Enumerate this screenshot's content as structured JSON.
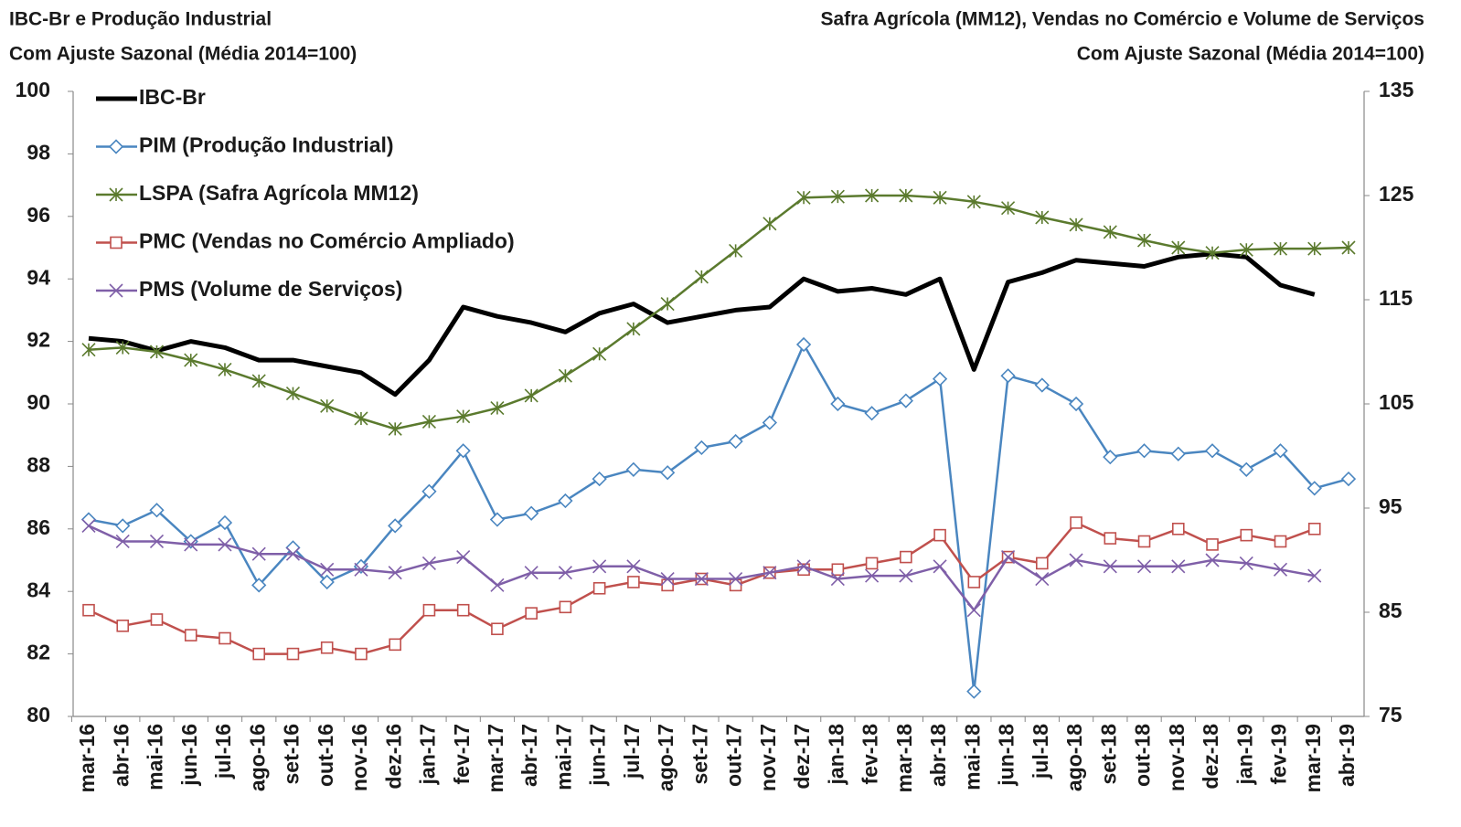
{
  "chart_data": {
    "type": "line",
    "title_left": [
      "IBC-Br e Produção Industrial",
      "Com Ajuste Sazonal (Média 2014=100)"
    ],
    "title_right": [
      "Safra Agrícola (MM12), Vendas no Comércio e Volume de Serviços",
      "Com Ajuste Sazonal (Média 2014=100)"
    ],
    "categories": [
      "mar-16",
      "abr-16",
      "mai-16",
      "jun-16",
      "jul-16",
      "ago-16",
      "set-16",
      "out-16",
      "nov-16",
      "dez-16",
      "jan-17",
      "fev-17",
      "mar-17",
      "abr-17",
      "mai-17",
      "jun-17",
      "jul-17",
      "ago-17",
      "set-17",
      "out-17",
      "nov-17",
      "dez-17",
      "jan-18",
      "fev-18",
      "mar-18",
      "abr-18",
      "mai-18",
      "jun-18",
      "jul-18",
      "ago-18",
      "set-18",
      "out-18",
      "nov-18",
      "dez-18",
      "jan-19",
      "fev-19",
      "mar-19",
      "abr-19"
    ],
    "ylim": [
      80,
      100
    ],
    "yticks": [
      80,
      82,
      84,
      86,
      88,
      90,
      92,
      94,
      96,
      98,
      100
    ],
    "y2lim": [
      75,
      135
    ],
    "y2ticks": [
      75,
      85,
      95,
      105,
      115,
      125,
      135
    ],
    "legend": "top-left",
    "series": [
      {
        "name": "IBC-Br",
        "color": "#000000",
        "marker": "none",
        "line_width": 5,
        "values": [
          92.1,
          92.0,
          91.7,
          92.0,
          91.8,
          91.4,
          91.4,
          91.2,
          91.0,
          90.3,
          91.4,
          93.1,
          92.8,
          92.6,
          92.3,
          92.9,
          93.2,
          92.6,
          92.8,
          93.0,
          93.1,
          94.0,
          93.6,
          93.7,
          93.5,
          94.0,
          91.1,
          93.9,
          94.2,
          94.6,
          94.5,
          94.4,
          94.7,
          94.8,
          94.7,
          93.8,
          93.5,
          null
        ]
      },
      {
        "name": "PIM (Produção Industrial)",
        "color": "#4a86c0",
        "marker": "diamond",
        "line_width": 2.5,
        "values": [
          86.3,
          86.1,
          86.6,
          85.6,
          86.2,
          84.2,
          85.4,
          84.3,
          84.8,
          86.1,
          87.2,
          88.5,
          86.3,
          86.5,
          86.9,
          87.6,
          87.9,
          87.8,
          88.6,
          88.8,
          89.4,
          91.9,
          90.0,
          89.7,
          90.1,
          90.8,
          80.8,
          90.9,
          90.6,
          90.0,
          88.3,
          88.5,
          88.4,
          88.5,
          87.9,
          88.5,
          87.3,
          87.6
        ]
      },
      {
        "name": "LSPA (Safra Agrícola MM12)",
        "color": "#5b7a2e",
        "marker": "star",
        "line_width": 2.5,
        "axis": "y2",
        "values": [
          110.2,
          110.4,
          110.0,
          109.2,
          108.3,
          107.2,
          106.0,
          104.8,
          103.6,
          102.6,
          103.3,
          103.8,
          104.6,
          105.8,
          107.7,
          109.8,
          112.2,
          114.6,
          117.2,
          119.7,
          122.3,
          124.8,
          124.9,
          125.0,
          125.0,
          124.8,
          124.4,
          123.8,
          122.9,
          122.2,
          121.5,
          120.7,
          120.0,
          119.5,
          119.8,
          119.9,
          119.9,
          120.0
        ]
      },
      {
        "name": "PMC (Vendas no Comércio Ampliado)",
        "color": "#c0504d",
        "marker": "square",
        "line_width": 2.5,
        "values": [
          83.4,
          82.9,
          83.1,
          82.6,
          82.5,
          82.0,
          82.0,
          82.2,
          82.0,
          82.3,
          83.4,
          83.4,
          82.8,
          83.3,
          83.5,
          84.1,
          84.3,
          84.2,
          84.4,
          84.2,
          84.6,
          84.7,
          84.7,
          84.9,
          85.1,
          85.8,
          84.3,
          85.1,
          84.9,
          86.2,
          85.7,
          85.6,
          86.0,
          85.5,
          85.8,
          85.6,
          86.0,
          null
        ]
      },
      {
        "name": "PMS (Volume de Serviços)",
        "color": "#7f5fa8",
        "marker": "x",
        "line_width": 2.5,
        "values": [
          86.1,
          85.6,
          85.6,
          85.5,
          85.5,
          85.2,
          85.2,
          84.7,
          84.7,
          84.6,
          84.9,
          85.1,
          84.2,
          84.6,
          84.6,
          84.8,
          84.8,
          84.4,
          84.4,
          84.4,
          84.6,
          84.8,
          84.4,
          84.5,
          84.5,
          84.8,
          83.4,
          85.1,
          84.4,
          85.0,
          84.8,
          84.8,
          84.8,
          85.0,
          84.9,
          84.7,
          84.5,
          null
        ]
      }
    ]
  }
}
